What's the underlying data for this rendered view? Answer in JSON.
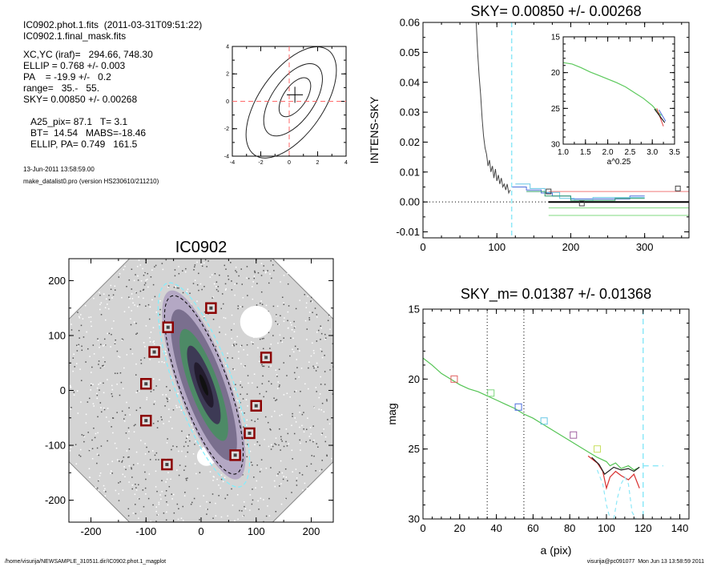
{
  "info": {
    "line1": "IC0902.phot.1.fits  (2011-03-31T09:51:22)",
    "line2": "IC0902.1.final_mask.fits",
    "xcyc": "XC,YC (iraf)=   294.66, 748.30",
    "ellip": "ELLIP = 0.768 +/- 0.003",
    "pa": "PA    = -19.9 +/-   0.2",
    "range": "range=   35.-   55.",
    "sky": "SKY= 0.00850 +/- 0.00268",
    "a25": "A25_pix= 87.1   T= 3.1",
    "bt": "BT=  14.54   MABS=-18.46",
    "ellip_pa": "ELLIP, PA= 0.749   161.5",
    "date": "13-Jun-2011 13:58:59.00",
    "program": "make_datalist0.pro (version HS230610/211210)"
  },
  "footer": {
    "path": "/home/visurija/NEWSAMPLE_310511.dir/IC0902.phot.1_magplot",
    "user": "visurija@pc091077  Mon Jun 13 13:58:59 2011"
  },
  "chart_data": [
    {
      "id": "contour",
      "type": "contour",
      "xlim": [
        -4,
        4
      ],
      "ylim": [
        -4,
        4
      ],
      "xticks": [
        "-4",
        "-2",
        "0",
        "2",
        "4"
      ],
      "yticks": [
        "-4",
        "-2",
        "0",
        "2",
        "4"
      ],
      "center": [
        0,
        0
      ],
      "crosshair_color": "#ff6a6a"
    },
    {
      "id": "image",
      "type": "image",
      "title": "IC0902",
      "xlim": [
        -240,
        240
      ],
      "ylim": [
        -240,
        240
      ],
      "xticks": [
        "-200",
        "-100",
        "0",
        "100",
        "200"
      ],
      "yticks": [
        "-200",
        "-100",
        "0",
        "100",
        "200"
      ],
      "star_marks": [
        [
          18,
          150
        ],
        [
          -60,
          115
        ],
        [
          -85,
          70
        ],
        [
          -100,
          12
        ],
        [
          -100,
          -55
        ],
        [
          118,
          60
        ],
        [
          100,
          -28
        ],
        [
          88,
          -78
        ],
        [
          62,
          -118
        ],
        [
          -62,
          -135
        ]
      ],
      "ellipse_pa_deg": -19.9,
      "ellipse_ratio": 0.232,
      "mark_color": "#8b0000"
    },
    {
      "id": "sky",
      "type": "line",
      "title": "SKY= 0.00850 +/- 0.00268",
      "ylabel": "INTENS-SKY",
      "xlim": [
        0,
        360
      ],
      "ylim": [
        -0.012,
        0.06
      ],
      "xticks": [
        "0",
        "100",
        "200",
        "300"
      ],
      "yticks": [
        "-0.01",
        "0.00",
        "0.01",
        "0.02",
        "0.03",
        "0.04",
        "0.05",
        "0.06"
      ],
      "series": [
        {
          "values": [
            [
              72,
              0.06
            ],
            [
              74,
              0.05
            ],
            [
              76,
              0.042
            ],
            [
              78,
              0.036
            ],
            [
              80,
              0.028
            ],
            [
              82,
              0.022
            ],
            [
              84,
              0.018
            ],
            [
              86,
              0.016
            ],
            [
              88,
              0.012
            ],
            [
              90,
              0.014
            ],
            [
              92,
              0.01
            ],
            [
              94,
              0.012
            ],
            [
              96,
              0.008
            ],
            [
              98,
              0.011
            ],
            [
              100,
              0.007
            ],
            [
              102,
              0.009
            ],
            [
              104,
              0.006
            ],
            [
              106,
              0.008
            ],
            [
              108,
              0.005
            ],
            [
              110,
              0.006
            ],
            [
              112,
              0.004
            ],
            [
              114,
              0.006
            ],
            [
              116,
              0.003
            ],
            [
              118,
              0.004
            ]
          ]
        },
        {
          "values": [
            [
              120,
              0.005
            ],
            [
              140,
              0.005
            ],
            [
              140,
              0.004
            ],
            [
              160,
              0.004
            ],
            [
              160,
              0.003
            ],
            [
              175,
              0.003
            ],
            [
              175,
              0.002
            ],
            [
              200,
              0.002
            ],
            [
              200,
              0.001
            ],
            [
              280,
              0.001
            ],
            [
              280,
              0.002
            ],
            [
              300,
              0.002
            ]
          ]
        },
        {
          "values": [
            [
              125,
              0.006
            ],
            [
              145,
              0.006
            ],
            [
              145,
              0.0045
            ],
            [
              165,
              0.0045
            ],
            [
              165,
              0.0032
            ],
            [
              185,
              0.0032
            ],
            [
              185,
              0.0012
            ],
            [
              205,
              0.0012
            ],
            [
              205,
              0.0005
            ],
            [
              230,
              0.0005
            ],
            [
              230,
              0.0015
            ],
            [
              300,
              0.0015
            ]
          ]
        },
        {
          "values": [
            [
              140,
              0.0035
            ],
            [
              165,
              0.0035
            ],
            [
              165,
              0.002
            ],
            [
              200,
              0.002
            ],
            [
              200,
              0.0005
            ],
            [
              260,
              0.0005
            ],
            [
              260,
              0.0012
            ],
            [
              300,
              0.0012
            ]
          ]
        },
        {
          "values": [
            [
              170,
              0.0035
            ],
            [
              360,
              0.0035
            ]
          ]
        },
        {
          "values": [
            [
              170,
              -0.002
            ],
            [
              360,
              -0.002
            ]
          ]
        },
        {
          "values": [
            [
              170,
              -0.0045
            ],
            [
              360,
              -0.0045
            ]
          ]
        },
        {
          "values": [
            [
              170,
              0
            ],
            [
              360,
              0
            ]
          ]
        }
      ],
      "boxes": [
        [
          170,
          0.0035
        ],
        [
          215,
          -0.0005
        ],
        [
          345,
          0.0045
        ]
      ],
      "vline": 120,
      "zero_line": 0,
      "inset": {
        "xlim": [
          1.0,
          3.5
        ],
        "ylim": [
          30,
          15
        ],
        "xticks": [
          "1.0",
          "1.5",
          "2.0",
          "2.5",
          "3.0",
          "3.5"
        ],
        "yticks": [
          "15",
          "20",
          "25",
          "30"
        ],
        "xlabel": "a^0.25",
        "values": [
          [
            1.0,
            18.6
          ],
          [
            1.2,
            18.8
          ],
          [
            1.4,
            19.3
          ],
          [
            1.6,
            19.9
          ],
          [
            1.8,
            20.4
          ],
          [
            2.0,
            20.9
          ],
          [
            2.2,
            21.4
          ],
          [
            2.4,
            22.0
          ],
          [
            2.6,
            22.8
          ],
          [
            2.8,
            23.6
          ],
          [
            3.0,
            24.6
          ],
          [
            3.1,
            25.3
          ],
          [
            3.2,
            26.0
          ]
        ]
      }
    },
    {
      "id": "mag",
      "type": "line",
      "title": "SKY_m=  0.01387 +/- 0.01368",
      "xlabel": "a (pix)",
      "ylabel": "mag",
      "xlim": [
        0,
        145
      ],
      "ylim": [
        30,
        15
      ],
      "xticks": [
        "0",
        "20",
        "40",
        "60",
        "80",
        "100",
        "120",
        "140"
      ],
      "yticks": [
        "15",
        "20",
        "25",
        "30"
      ],
      "series": [
        {
          "values": [
            [
              0,
              18.5
            ],
            [
              5,
              19.0
            ],
            [
              10,
              19.6
            ],
            [
              15,
              20.0
            ],
            [
              20,
              20.4
            ],
            [
              25,
              20.7
            ],
            [
              30,
              20.9
            ],
            [
              35,
              21.2
            ],
            [
              40,
              21.5
            ],
            [
              45,
              21.8
            ],
            [
              50,
              22.1
            ],
            [
              55,
              22.5
            ],
            [
              60,
              22.8
            ],
            [
              65,
              23.2
            ],
            [
              70,
              23.6
            ],
            [
              75,
              24.0
            ],
            [
              80,
              24.4
            ],
            [
              85,
              24.8
            ],
            [
              90,
              25.2
            ],
            [
              95,
              25.6
            ],
            [
              100,
              25.9
            ],
            [
              102,
              26.2
            ],
            [
              105,
              26.0
            ],
            [
              108,
              26.4
            ],
            [
              112,
              26.2
            ],
            [
              115,
              26.5
            ],
            [
              118,
              26.3
            ]
          ]
        },
        {
          "values": [
            [
              90,
              25.5
            ],
            [
              95,
              26.0
            ],
            [
              98,
              26.6
            ],
            [
              100,
              27.8
            ],
            [
              102,
              27.0
            ],
            [
              105,
              26.6
            ],
            [
              108,
              26.9
            ],
            [
              112,
              27.2
            ],
            [
              115,
              26.8
            ],
            [
              118,
              27.8
            ]
          ]
        },
        {
          "values": [
            [
              92,
              25.6
            ],
            [
              96,
              26.1
            ],
            [
              99,
              26.8
            ],
            [
              101,
              26.6
            ],
            [
              104,
              26.3
            ],
            [
              108,
              26.5
            ],
            [
              112,
              26.4
            ],
            [
              115,
              26.6
            ],
            [
              118,
              26.3
            ]
          ]
        },
        {
          "values": [
            [
              95,
              26.5
            ],
            [
              98,
              27.5
            ],
            [
              100,
              29.0
            ],
            [
              102,
              30.0
            ]
          ]
        },
        {
          "values": [
            [
              104,
              30.0
            ],
            [
              106,
              28.5
            ],
            [
              108,
              27.5
            ],
            [
              110,
              27.0
            ],
            [
              112,
              27.5
            ],
            [
              114,
              29.5
            ],
            [
              116,
              30.0
            ]
          ]
        }
      ],
      "boxes": [
        [
          17,
          20.0
        ],
        [
          37,
          21.0
        ],
        [
          52,
          22.0
        ],
        [
          66,
          23.0
        ],
        [
          82,
          24.0
        ],
        [
          95,
          25.0
        ]
      ],
      "dotted_vlines": [
        35,
        55
      ],
      "dashed_vline": 120,
      "dashed_hline": [
        120,
        131,
        26.2
      ]
    }
  ]
}
